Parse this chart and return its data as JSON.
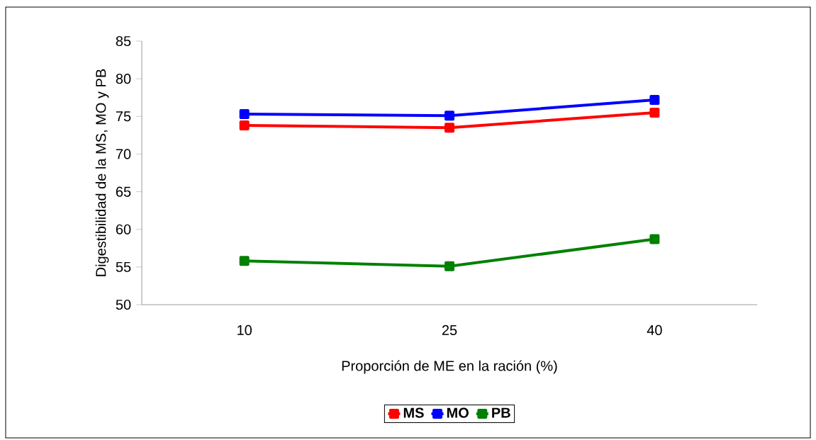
{
  "chart_data": {
    "type": "line",
    "xlabel": "Proporción de ME en la ración (%)",
    "ylabel": "Digestibilidad de la MS, MO y PB",
    "categories": [
      "10",
      "25",
      "40"
    ],
    "series": [
      {
        "name": "MS",
        "color": "#ff0000",
        "values": [
          73.8,
          73.5,
          75.5
        ]
      },
      {
        "name": "MO",
        "color": "#0000ff",
        "values": [
          75.3,
          75.1,
          77.2
        ]
      },
      {
        "name": "PB",
        "color": "#008000",
        "values": [
          55.8,
          55.1,
          58.7
        ]
      }
    ],
    "ylim": [
      50,
      85
    ],
    "yticks": [
      50,
      55,
      60,
      65,
      70,
      75,
      80,
      85
    ],
    "grid": false,
    "legend": "bottom",
    "marker": "square",
    "line_style": "solid"
  }
}
